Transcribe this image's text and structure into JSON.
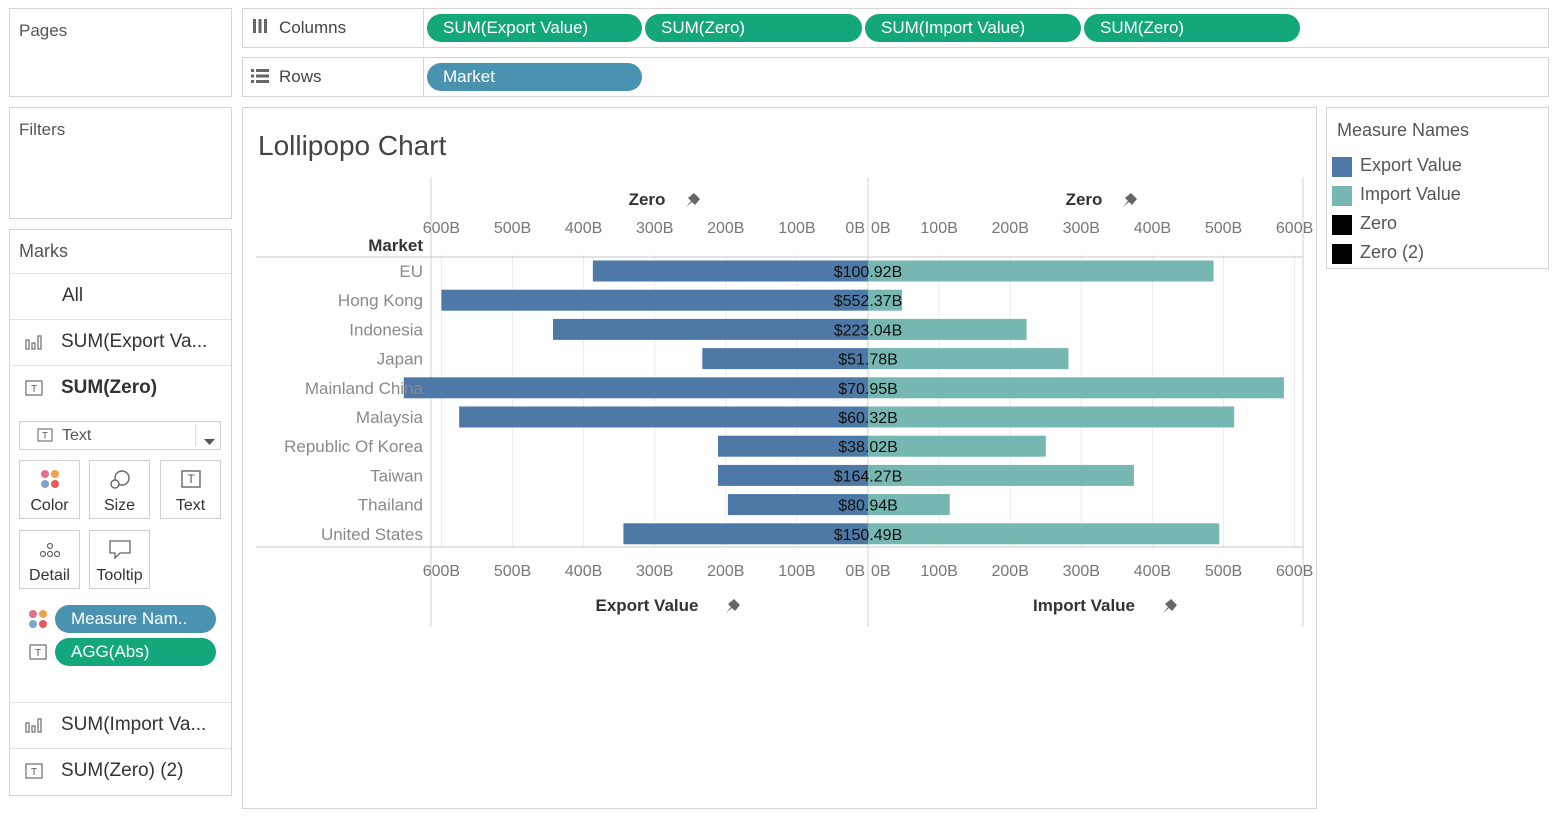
{
  "pages": {
    "title": "Pages"
  },
  "filters": {
    "title": "Filters"
  },
  "columns": {
    "label": "Columns",
    "pills": [
      "SUM(Export Value)",
      "SUM(Zero)",
      "SUM(Import Value)",
      "SUM(Zero)"
    ]
  },
  "rows": {
    "label": "Rows",
    "pills": [
      "Market"
    ]
  },
  "marks": {
    "title": "Marks",
    "all": "All",
    "cards": [
      "SUM(Export Va...",
      "SUM(Zero)",
      "SUM(Import Va...",
      "SUM(Zero) (2)"
    ],
    "mark_type": "Text",
    "buttons": [
      "Color",
      "Size",
      "Text",
      "Detail",
      "Tooltip"
    ],
    "fields": [
      "Measure Nam..",
      "AGG(Abs)"
    ]
  },
  "legend": {
    "title": "Measure Names",
    "items": [
      {
        "label": "Export Value",
        "color": "#4e79a7"
      },
      {
        "label": "Import Value",
        "color": "#76b7b2"
      },
      {
        "label": "Zero",
        "color": "#000000"
      },
      {
        "label": "Zero (2)",
        "color": "#000000"
      }
    ]
  },
  "chart_data": {
    "type": "bar",
    "title": "Lollipopo Chart",
    "row_header": "Market",
    "top_headers": [
      "Zero",
      "Zero"
    ],
    "bottom_headers": [
      "Export Value",
      "Import Value"
    ],
    "ticks": [
      "600B",
      "500B",
      "400B",
      "300B",
      "200B",
      "100B",
      "0B"
    ],
    "tick_values": [
      600,
      500,
      400,
      300,
      200,
      100,
      0
    ],
    "unit": "B",
    "categories": [
      "EU",
      "Hong Kong",
      "Indonesia",
      "Japan",
      "Mainland China",
      "Malaysia",
      "Republic Of Korea",
      "Taiwan",
      "Thailand",
      "United States"
    ],
    "series": [
      {
        "name": "Export Value",
        "color": "#4e79a7",
        "values": [
          387,
          600,
          443,
          233,
          653,
          575,
          211,
          211,
          197,
          344
        ]
      },
      {
        "name": "Import Value",
        "color": "#76b7b2",
        "values": [
          486,
          48,
          223,
          282,
          585,
          515,
          250,
          374,
          115,
          494
        ]
      }
    ],
    "labels": [
      "$100.92B",
      "$552.37B",
      "$223.04B",
      "$51.78B",
      "$70.95B",
      "$60.32B",
      "$38.02B",
      "$164.27B",
      "$80.94B",
      "$150.49B"
    ],
    "xlim": [
      0,
      600
    ]
  }
}
